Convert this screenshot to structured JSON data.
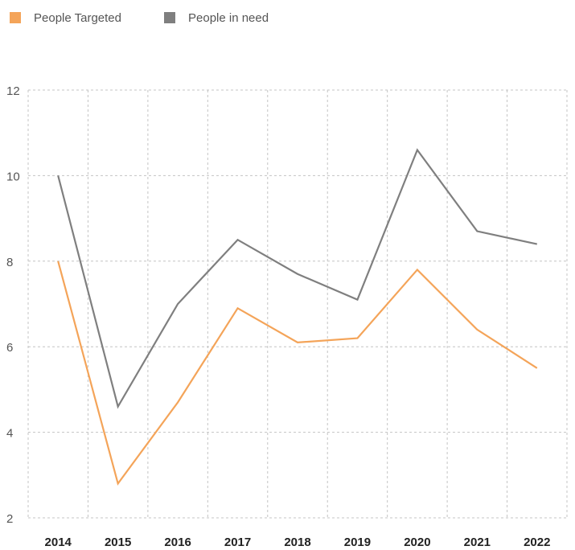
{
  "chart_data": {
    "type": "line",
    "categories": [
      "2014",
      "2015",
      "2016",
      "2017",
      "2018",
      "2019",
      "2020",
      "2021",
      "2022"
    ],
    "series": [
      {
        "name": "People Targeted",
        "color": "#f4a459",
        "values": [
          8.0,
          2.8,
          4.7,
          6.9,
          6.1,
          6.2,
          7.8,
          6.4,
          5.5
        ]
      },
      {
        "name": "People in need",
        "color": "#7f7f7f",
        "values": [
          10.0,
          4.6,
          7.0,
          8.5,
          7.7,
          7.1,
          10.6,
          8.7,
          8.4
        ]
      }
    ],
    "ylim": [
      2,
      12
    ],
    "yticks": [
      2,
      4,
      6,
      8,
      10,
      12
    ],
    "grid": true
  }
}
